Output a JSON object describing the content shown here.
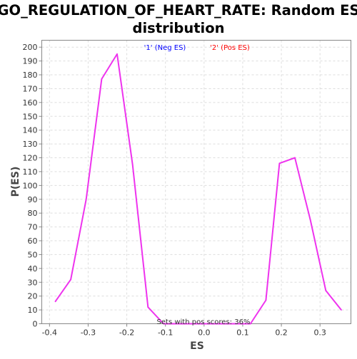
{
  "chart_data": {
    "type": "line",
    "title_lines": [
      "GO_REGULATION_OF_HEART_RATE: Random ES",
      "distribution"
    ],
    "xlabel": "ES",
    "ylabel": "P(ES)",
    "xlim": [
      -0.42,
      0.38
    ],
    "ylim": [
      0,
      205
    ],
    "x_ticks": [
      -0.4,
      -0.3,
      -0.2,
      -0.1,
      0.0,
      0.1,
      0.2,
      0.3
    ],
    "x_tick_labels": [
      "-0.4",
      "-0.3",
      "-0.2",
      "-0.1",
      "0.0",
      "0.1",
      "0.2",
      "0.3"
    ],
    "y_ticks": [
      0,
      10,
      20,
      30,
      40,
      50,
      60,
      70,
      80,
      90,
      100,
      110,
      120,
      130,
      140,
      150,
      160,
      170,
      180,
      190,
      200
    ],
    "grid": true,
    "legend": [
      {
        "label": "'1' (Neg ES)",
        "color": "#0000ff"
      },
      {
        "label": "'2' (Pos ES)",
        "color": "#ff0000"
      }
    ],
    "annotation": "Sets with pos scores: 36%",
    "series": [
      {
        "color": "#ee33ee",
        "x": [
          -0.385,
          -0.345,
          -0.305,
          -0.265,
          -0.225,
          -0.185,
          -0.145,
          -0.105,
          0.12,
          0.16,
          0.195,
          0.235,
          0.275,
          0.315,
          0.355
        ],
        "y": [
          16,
          32,
          90,
          177,
          195,
          115,
          12,
          0,
          0,
          17,
          116,
          120,
          75,
          24,
          10
        ]
      }
    ]
  }
}
